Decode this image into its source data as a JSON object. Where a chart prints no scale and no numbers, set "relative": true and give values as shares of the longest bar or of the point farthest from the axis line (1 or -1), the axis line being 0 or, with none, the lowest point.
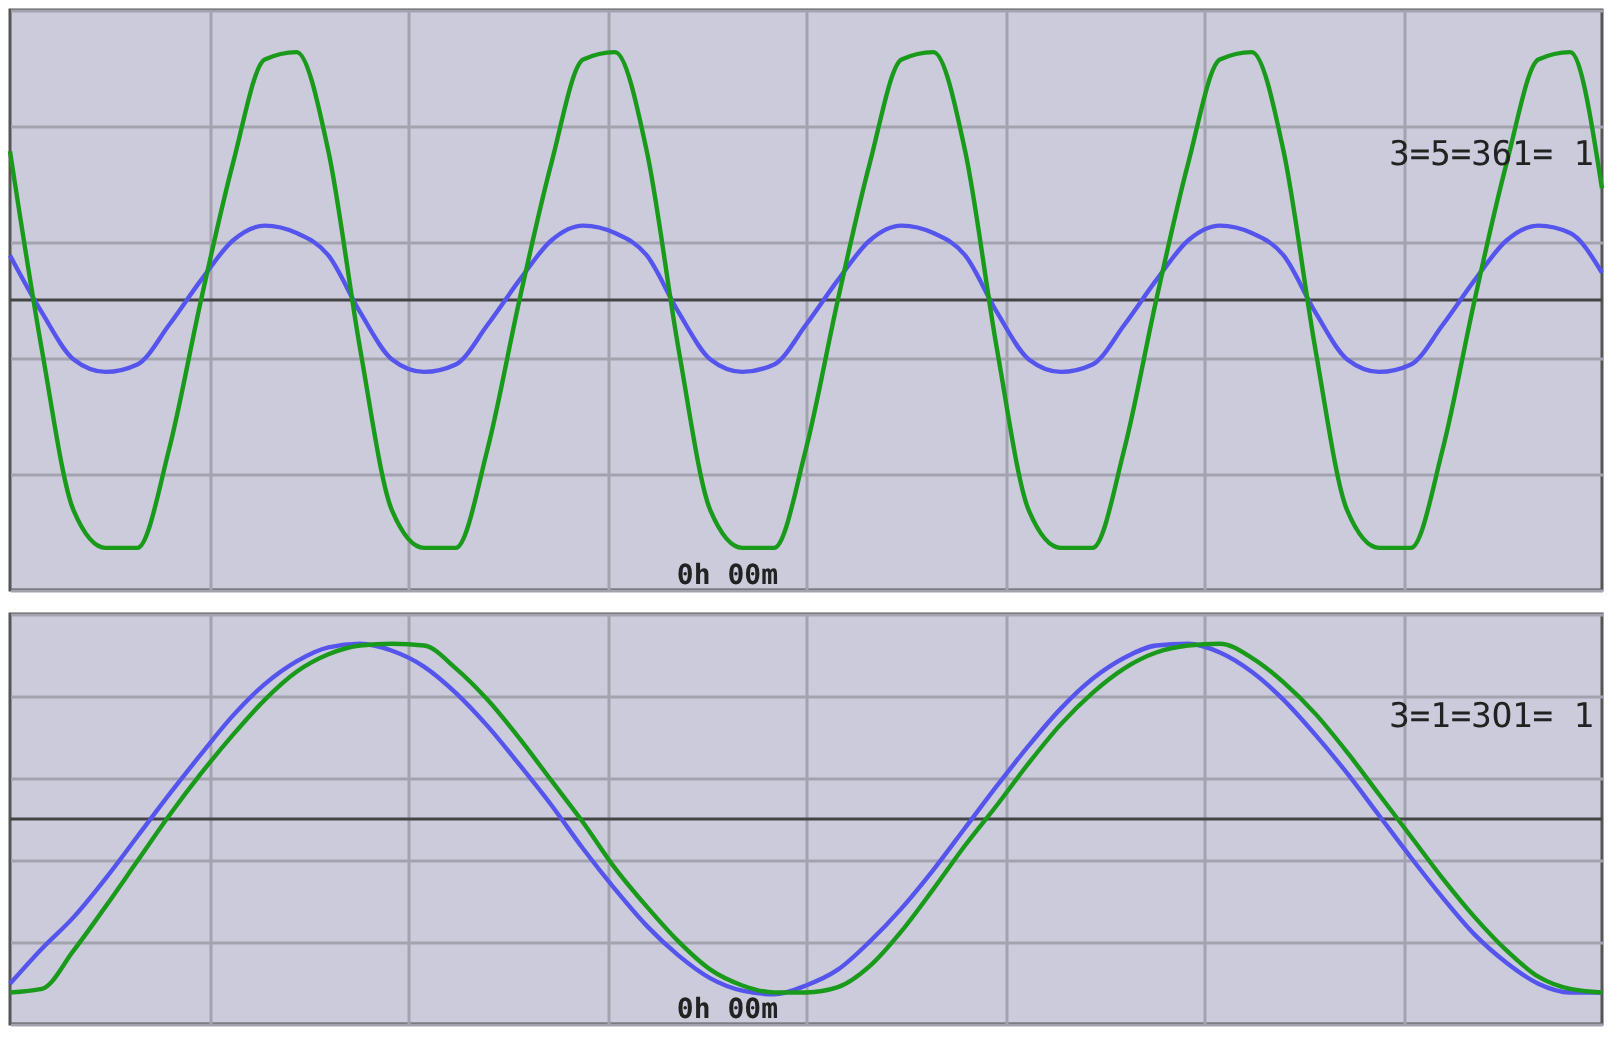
{
  "chart_data": [
    {
      "type": "line",
      "relative": true,
      "grid": true,
      "categories": [
        null,
        null,
        null,
        null,
        null,
        null,
        null,
        null,
        null,
        null,
        null,
        null,
        null,
        null,
        null,
        null,
        null,
        null,
        null,
        null,
        null,
        null,
        null,
        null,
        null,
        null,
        null,
        null,
        null,
        null,
        null,
        null,
        null,
        null,
        null,
        null,
        null,
        null,
        null,
        null,
        null,
        null,
        null,
        null,
        null,
        null,
        null,
        null,
        null,
        null,
        null
      ],
      "annotations": [
        "0h 00m",
        "3=5=361= 1"
      ],
      "series": [
        {
          "color": "#5555ee",
          "values": [
            0.18,
            -0.05,
            -0.24,
            -0.29,
            -0.26,
            -0.1,
            0.08,
            0.24,
            0.3,
            0.27,
            0.18,
            -0.05,
            -0.24,
            -0.29,
            -0.26,
            -0.1,
            0.08,
            0.24,
            0.3,
            0.27,
            0.18,
            -0.05,
            -0.24,
            -0.29,
            -0.26,
            -0.1,
            0.08,
            0.24,
            0.3,
            0.27,
            0.18,
            -0.05,
            -0.24,
            -0.29,
            -0.26,
            -0.1,
            0.08,
            0.24,
            0.3,
            0.27,
            0.18,
            -0.05,
            -0.24,
            -0.29,
            -0.26,
            -0.1,
            0.08,
            0.24,
            0.3,
            0.27,
            0.11
          ]
        },
        {
          "color": "#1a9a1a",
          "values": [
            0.6,
            -0.2,
            -0.85,
            -1,
            -1,
            -0.6,
            0,
            0.55,
            0.97,
            1,
            0.6,
            -0.2,
            -0.85,
            -1,
            -1,
            -0.6,
            0,
            0.55,
            0.97,
            1,
            0.6,
            -0.2,
            -0.85,
            -1,
            -1,
            -0.6,
            0,
            0.55,
            0.97,
            1,
            0.6,
            -0.2,
            -0.85,
            -1,
            -1,
            -0.6,
            0,
            0.55,
            0.97,
            1,
            0.6,
            -0.2,
            -0.85,
            -1,
            -1,
            -0.6,
            0,
            0.55,
            0.97,
            1,
            0.45
          ]
        }
      ]
    },
    {
      "type": "line",
      "relative": true,
      "grid": true,
      "categories": [
        null,
        null,
        null,
        null,
        null,
        null,
        null,
        null,
        null,
        null,
        null,
        null,
        null,
        null,
        null,
        null,
        null,
        null,
        null,
        null,
        null,
        null,
        null,
        null,
        null,
        null,
        null,
        null,
        null,
        null,
        null,
        null,
        null,
        null,
        null,
        null,
        null,
        null,
        null,
        null,
        null,
        null,
        null,
        null,
        null,
        null,
        null,
        null,
        null,
        null,
        null
      ],
      "annotations": [
        "0h 00m",
        "3=1=3O1= 1"
      ],
      "series": [
        {
          "color": "#5555ee",
          "values": [
            -0.94,
            -0.74,
            -0.56,
            -0.34,
            -0.1,
            0.14,
            0.37,
            0.59,
            0.77,
            0.9,
            0.98,
            1,
            0.96,
            0.87,
            0.72,
            0.53,
            0.31,
            0.08,
            -0.17,
            -0.4,
            -0.61,
            -0.78,
            -0.91,
            -0.98,
            -1,
            -0.95,
            -0.86,
            -0.7,
            -0.51,
            -0.29,
            -0.05,
            0.19,
            0.42,
            0.63,
            0.8,
            0.92,
            0.99,
            1,
            0.95,
            0.84,
            0.68,
            0.48,
            0.26,
            0.02,
            -0.22,
            -0.45,
            -0.66,
            -0.82,
            -0.94,
            -0.99,
            -0.99
          ]
        },
        {
          "color": "#1a9a1a",
          "values": [
            -0.99,
            -0.97,
            -0.75,
            -0.5,
            -0.24,
            0.02,
            0.26,
            0.48,
            0.68,
            0.84,
            0.94,
            0.99,
            1,
            0.99,
            0.86,
            0.68,
            0.46,
            0.22,
            -0.02,
            -0.28,
            -0.5,
            -0.7,
            -0.86,
            -0.95,
            -0.99,
            -0.99,
            -0.96,
            -0.84,
            -0.64,
            -0.4,
            -0.15,
            0.08,
            0.32,
            0.54,
            0.72,
            0.86,
            0.95,
            0.99,
            1,
            0.92,
            0.78,
            0.6,
            0.38,
            0.14,
            -0.1,
            -0.34,
            -0.56,
            -0.75,
            -0.9,
            -0.97,
            -0.99
          ]
        }
      ]
    }
  ]
}
